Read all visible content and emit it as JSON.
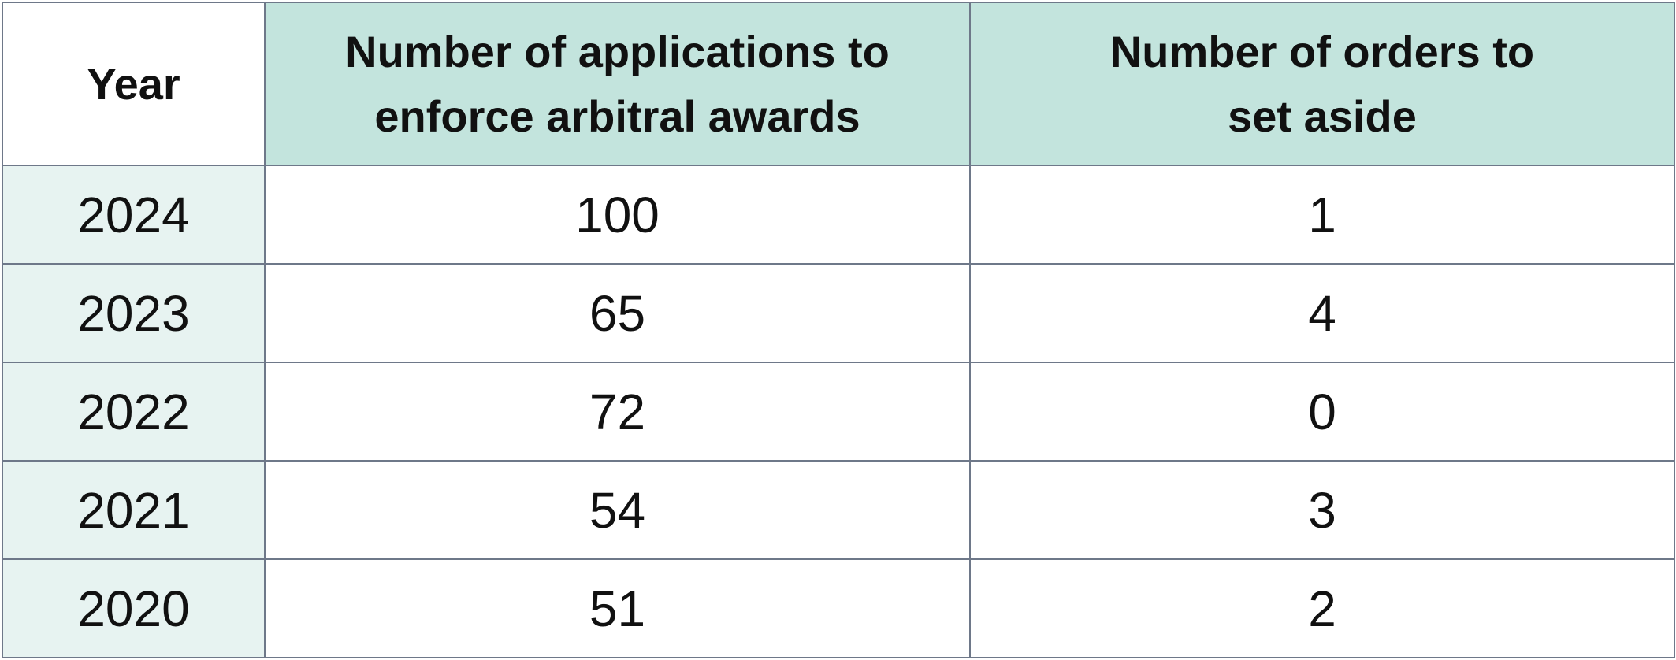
{
  "table": {
    "header": [
      "Year",
      [
        "Number of applications to",
        "enforce arbitral awards"
      ],
      [
        "Number of orders to",
        "set aside"
      ]
    ],
    "rows": [
      [
        "2024",
        "100",
        "1"
      ],
      [
        "2023",
        "65",
        "4"
      ],
      [
        "2022",
        "72",
        "0"
      ],
      [
        "2021",
        "54",
        "3"
      ],
      [
        "2020",
        "51",
        "2"
      ]
    ]
  }
}
